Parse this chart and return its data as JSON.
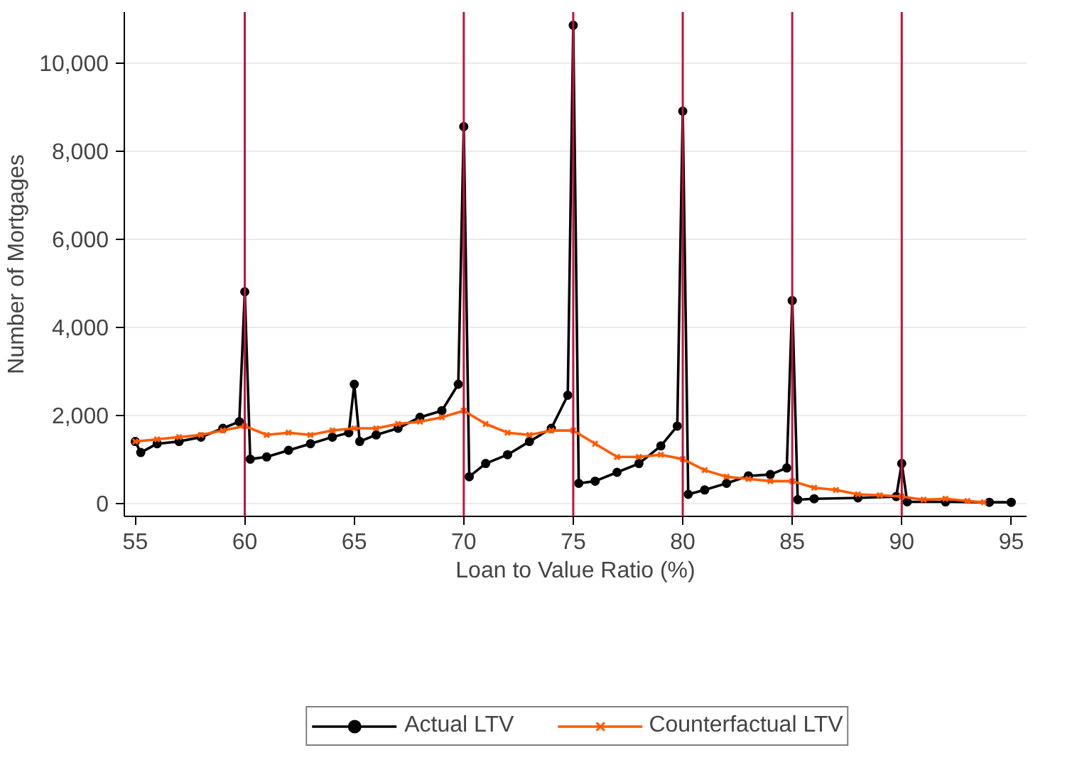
{
  "chart_data": {
    "type": "line",
    "xlabel": "Loan to Value Ratio (%)",
    "ylabel": "Number of Mortgages",
    "xlim": [
      54.5,
      95.7
    ],
    "ylim": [
      -300,
      11150
    ],
    "xticks": [
      55,
      60,
      65,
      70,
      75,
      80,
      85,
      90,
      95
    ],
    "yticks": [
      {
        "value": 0,
        "label": "0"
      },
      {
        "value": 2000,
        "label": "2,000"
      },
      {
        "value": 4000,
        "label": "4,000"
      },
      {
        "value": 6000,
        "label": "6,000"
      },
      {
        "value": 8000,
        "label": "8,000"
      },
      {
        "value": 10000,
        "label": "10,000"
      }
    ],
    "grid": "y",
    "legend": "bottom",
    "ref_lines": [
      {
        "axis": "x",
        "value": 60,
        "color": "#c0143c"
      },
      {
        "axis": "x",
        "value": 70,
        "color": "#c0143c"
      },
      {
        "axis": "x",
        "value": 75,
        "color": "#c0143c"
      },
      {
        "axis": "x",
        "value": 80,
        "color": "#c0143c"
      },
      {
        "axis": "x",
        "value": 85,
        "color": "#c0143c"
      },
      {
        "axis": "x",
        "value": 90,
        "color": "#c0143c"
      }
    ],
    "series": [
      {
        "name": "Actual LTV",
        "color": "#000000",
        "marker": "circle",
        "x": [
          55,
          55.25,
          56,
          57,
          58,
          59,
          59.75,
          60,
          60.25,
          61,
          62,
          63,
          64,
          64.75,
          65,
          65.25,
          66,
          67,
          68,
          69,
          69.75,
          70,
          70.25,
          71,
          72,
          73,
          74,
          74.75,
          75,
          75.25,
          76,
          77,
          78,
          79,
          79.75,
          80,
          80.25,
          81,
          82,
          83,
          84,
          84.75,
          85,
          85.25,
          86,
          88,
          89.75,
          90,
          90.25,
          92,
          94,
          95
        ],
        "values": [
          1400,
          1150,
          1350,
          1400,
          1500,
          1700,
          1850,
          4800,
          1000,
          1050,
          1200,
          1350,
          1500,
          1600,
          2700,
          1400,
          1550,
          1700,
          1950,
          2100,
          2700,
          8550,
          600,
          900,
          1100,
          1400,
          1700,
          2450,
          10850,
          450,
          500,
          700,
          900,
          1300,
          1750,
          8900,
          200,
          300,
          450,
          620,
          650,
          800,
          4600,
          80,
          100,
          120,
          150,
          900,
          30,
          30,
          20,
          20
        ]
      },
      {
        "name": "Counterfactual LTV",
        "color": "#ff5a00",
        "marker": "cross",
        "x": [
          55,
          56,
          57,
          58,
          59,
          60,
          61,
          62,
          63,
          64,
          65,
          66,
          67,
          68,
          69,
          70,
          71,
          72,
          73,
          74,
          75,
          76,
          77,
          78,
          79,
          80,
          81,
          82,
          83,
          84,
          85,
          86,
          87,
          88,
          89,
          90,
          91,
          92,
          93,
          93.75
        ],
        "values": [
          1400,
          1450,
          1500,
          1550,
          1650,
          1750,
          1550,
          1600,
          1550,
          1650,
          1700,
          1700,
          1800,
          1850,
          1950,
          2100,
          1800,
          1600,
          1550,
          1650,
          1650,
          1350,
          1050,
          1050,
          1100,
          1000,
          750,
          600,
          550,
          500,
          500,
          350,
          300,
          200,
          180,
          150,
          80,
          100,
          50,
          20
        ]
      }
    ]
  }
}
